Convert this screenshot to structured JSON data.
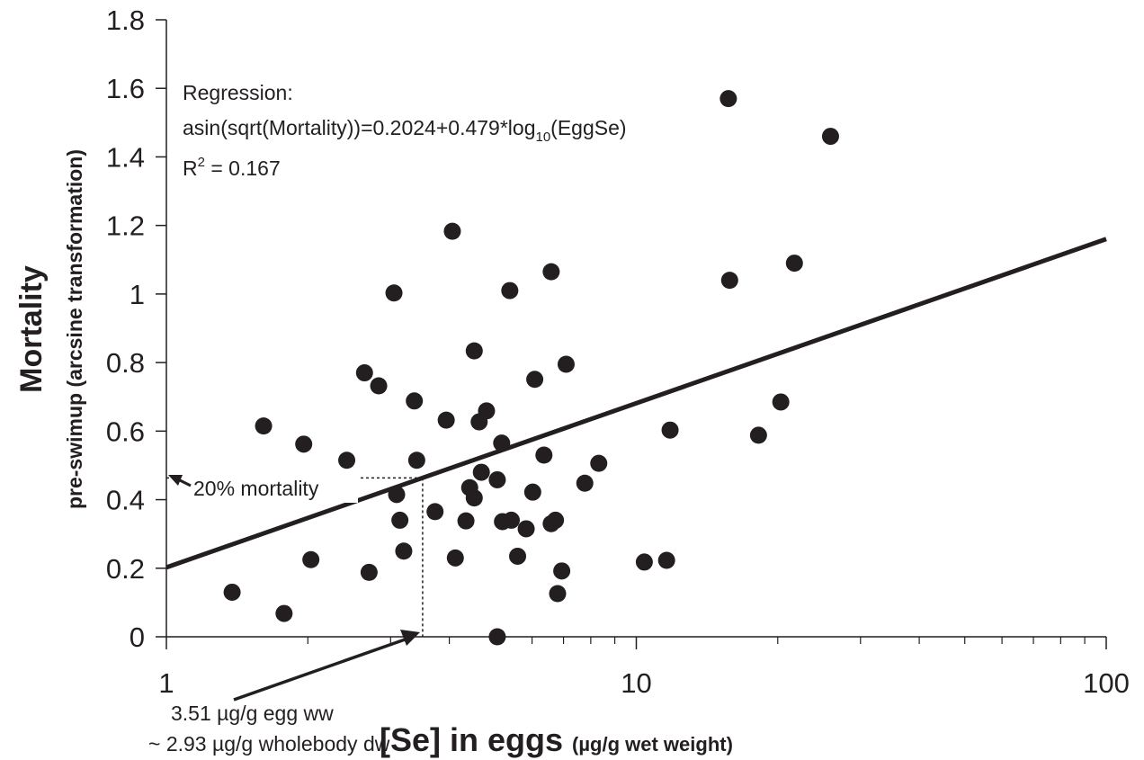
{
  "chart_data": {
    "type": "scatter",
    "x_scale": "log",
    "xlim": [
      1,
      100
    ],
    "ylim": [
      0,
      1.8
    ],
    "x_ticks": [
      "1",
      "10",
      "100"
    ],
    "y_ticks": [
      "0",
      "0.2",
      "0.4",
      "0.6",
      "0.8",
      "1",
      "1.2",
      "1.4",
      "1.6",
      "1.8"
    ],
    "xlabel": "[Se] in eggs",
    "xlabel_unit": "(µg/g wet weight)",
    "ylabel": "Mortality",
    "ylabel_sub": "pre-swimup (arcsine transformation)",
    "grid": false,
    "regression": {
      "intercept": 0.2024,
      "slope": 0.479,
      "label_line1": "Regression:",
      "label_line2_prefix": "asin(sqrt(Mortality))=0.2024+0.479*log",
      "label_line2_sub": "10",
      "label_line2_suffix": "(EggSe)",
      "r2_prefix": "R",
      "r2_sup": "2",
      "r2_suffix": " = 0.167"
    },
    "threshold": {
      "x": 3.51,
      "y": 0.4636,
      "y_label": "20% mortality",
      "x_label_line1": "3.51 µg/g egg ww",
      "x_label_line2": "~ 2.93 µg/g wholebody dw"
    },
    "points": [
      {
        "x": 1.38,
        "y": 0.13
      },
      {
        "x": 1.61,
        "y": 0.615
      },
      {
        "x": 1.78,
        "y": 0.068
      },
      {
        "x": 1.96,
        "y": 0.562
      },
      {
        "x": 2.03,
        "y": 0.225
      },
      {
        "x": 2.42,
        "y": 0.515
      },
      {
        "x": 2.64,
        "y": 0.77
      },
      {
        "x": 2.7,
        "y": 0.188
      },
      {
        "x": 2.83,
        "y": 0.732
      },
      {
        "x": 3.05,
        "y": 1.003
      },
      {
        "x": 3.09,
        "y": 0.415
      },
      {
        "x": 3.14,
        "y": 0.34
      },
      {
        "x": 3.2,
        "y": 0.25
      },
      {
        "x": 3.37,
        "y": 0.688
      },
      {
        "x": 3.41,
        "y": 0.515
      },
      {
        "x": 3.73,
        "y": 0.365
      },
      {
        "x": 3.94,
        "y": 0.632
      },
      {
        "x": 4.06,
        "y": 1.183
      },
      {
        "x": 4.12,
        "y": 0.23
      },
      {
        "x": 4.34,
        "y": 0.338
      },
      {
        "x": 4.42,
        "y": 0.435
      },
      {
        "x": 4.52,
        "y": 0.834
      },
      {
        "x": 4.52,
        "y": 0.405
      },
      {
        "x": 4.63,
        "y": 0.627
      },
      {
        "x": 4.68,
        "y": 0.48
      },
      {
        "x": 4.8,
        "y": 0.659
      },
      {
        "x": 5.06,
        "y": 0.458
      },
      {
        "x": 5.06,
        "y": 0.0
      },
      {
        "x": 5.17,
        "y": 0.565
      },
      {
        "x": 5.19,
        "y": 0.336
      },
      {
        "x": 5.38,
        "y": 1.01
      },
      {
        "x": 5.42,
        "y": 0.34
      },
      {
        "x": 5.59,
        "y": 0.235
      },
      {
        "x": 5.83,
        "y": 0.315
      },
      {
        "x": 6.02,
        "y": 0.422
      },
      {
        "x": 6.08,
        "y": 0.751
      },
      {
        "x": 6.36,
        "y": 0.53
      },
      {
        "x": 6.59,
        "y": 1.065
      },
      {
        "x": 6.59,
        "y": 0.33
      },
      {
        "x": 6.73,
        "y": 0.34
      },
      {
        "x": 6.8,
        "y": 0.126
      },
      {
        "x": 6.94,
        "y": 0.192
      },
      {
        "x": 7.09,
        "y": 0.795
      },
      {
        "x": 7.77,
        "y": 0.448
      },
      {
        "x": 8.32,
        "y": 0.506
      },
      {
        "x": 10.4,
        "y": 0.218
      },
      {
        "x": 11.6,
        "y": 0.223
      },
      {
        "x": 11.8,
        "y": 0.603
      },
      {
        "x": 15.7,
        "y": 1.57
      },
      {
        "x": 15.8,
        "y": 1.04
      },
      {
        "x": 18.2,
        "y": 0.588
      },
      {
        "x": 20.3,
        "y": 0.685
      },
      {
        "x": 21.7,
        "y": 1.09
      },
      {
        "x": 25.9,
        "y": 1.46
      }
    ]
  }
}
